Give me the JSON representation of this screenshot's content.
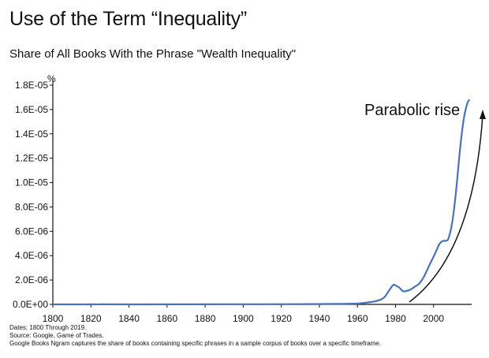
{
  "header": {
    "title": "Use of the Term “Inequality”",
    "subtitle": "Share of All Books With the Phrase \"Wealth Inequality\""
  },
  "chart_data": {
    "type": "line",
    "title": "Use of the Term “Inequality”",
    "subtitle": "Share of All Books With the Phrase \"Wealth Inequality\"",
    "xlabel": "",
    "ylabel": "%",
    "xlim": [
      1800,
      2020
    ],
    "ylim": [
      0,
      1.8e-05
    ],
    "x_ticks": [
      "1800",
      "1820",
      "1840",
      "1860",
      "1880",
      "1900",
      "1920",
      "1940",
      "1960",
      "1980",
      "2000"
    ],
    "x_tick_values": [
      1800,
      1820,
      1840,
      1860,
      1880,
      1900,
      1920,
      1940,
      1960,
      1980,
      2000
    ],
    "y_ticks": [
      "0.0E+00",
      "2.0E-06",
      "4.0E-06",
      "6.0E-06",
      "8.0E-06",
      "1.0E-05",
      "1.2E-05",
      "1.4E-05",
      "1.6E-05",
      "1.8E-05"
    ],
    "y_tick_values": [
      0,
      2e-06,
      4e-06,
      6e-06,
      8e-06,
      1e-05,
      1.2e-05,
      1.4e-05,
      1.6e-05,
      1.8e-05
    ],
    "grid": false,
    "series": [
      {
        "color": "#4a72b8",
        "points": [
          [
            1800,
            0
          ],
          [
            1820,
            0
          ],
          [
            1821,
            1e-08
          ],
          [
            1824,
            0
          ],
          [
            1860,
            0
          ],
          [
            1880,
            1e-08
          ],
          [
            1900,
            1e-08
          ],
          [
            1920,
            1e-08
          ],
          [
            1940,
            3e-08
          ],
          [
            1960,
            5e-08
          ],
          [
            1965,
            1.5e-07
          ],
          [
            1970,
            2.5e-07
          ],
          [
            1974,
            5e-07
          ],
          [
            1976,
            1e-06
          ],
          [
            1978,
            1.45e-06
          ],
          [
            1979,
            1.65e-06
          ],
          [
            1980,
            1.55e-06
          ],
          [
            1982,
            1.4e-06
          ],
          [
            1983,
            1.2e-06
          ],
          [
            1984,
            1.05e-06
          ],
          [
            1986,
            1.1e-06
          ],
          [
            1988,
            1.2e-06
          ],
          [
            1990,
            1.45e-06
          ],
          [
            1992,
            1.6e-06
          ],
          [
            1994,
            2e-06
          ],
          [
            1996,
            2.6e-06
          ],
          [
            1998,
            3.3e-06
          ],
          [
            2000,
            3.9e-06
          ],
          [
            2002,
            4.6e-06
          ],
          [
            2003,
            5e-06
          ],
          [
            2005,
            5.25e-06
          ],
          [
            2007,
            5.2e-06
          ],
          [
            2008,
            5.4e-06
          ],
          [
            2010,
            6.8e-06
          ],
          [
            2012,
            9.5e-06
          ],
          [
            2014,
            1.3e-05
          ],
          [
            2016,
            1.55e-05
          ],
          [
            2018,
            1.67e-05
          ],
          [
            2019,
            1.68e-05
          ]
        ]
      }
    ],
    "annotations": [
      {
        "text": "Parabolic rise"
      }
    ]
  },
  "footnotes": {
    "dates": "Dates: 1800 Through 2019.",
    "source": "Source: Google, Game of Trades.",
    "description": "Google Books Ngram captures the share of books containing specific phrases in a sample corpus of books over a specific timeframe."
  }
}
